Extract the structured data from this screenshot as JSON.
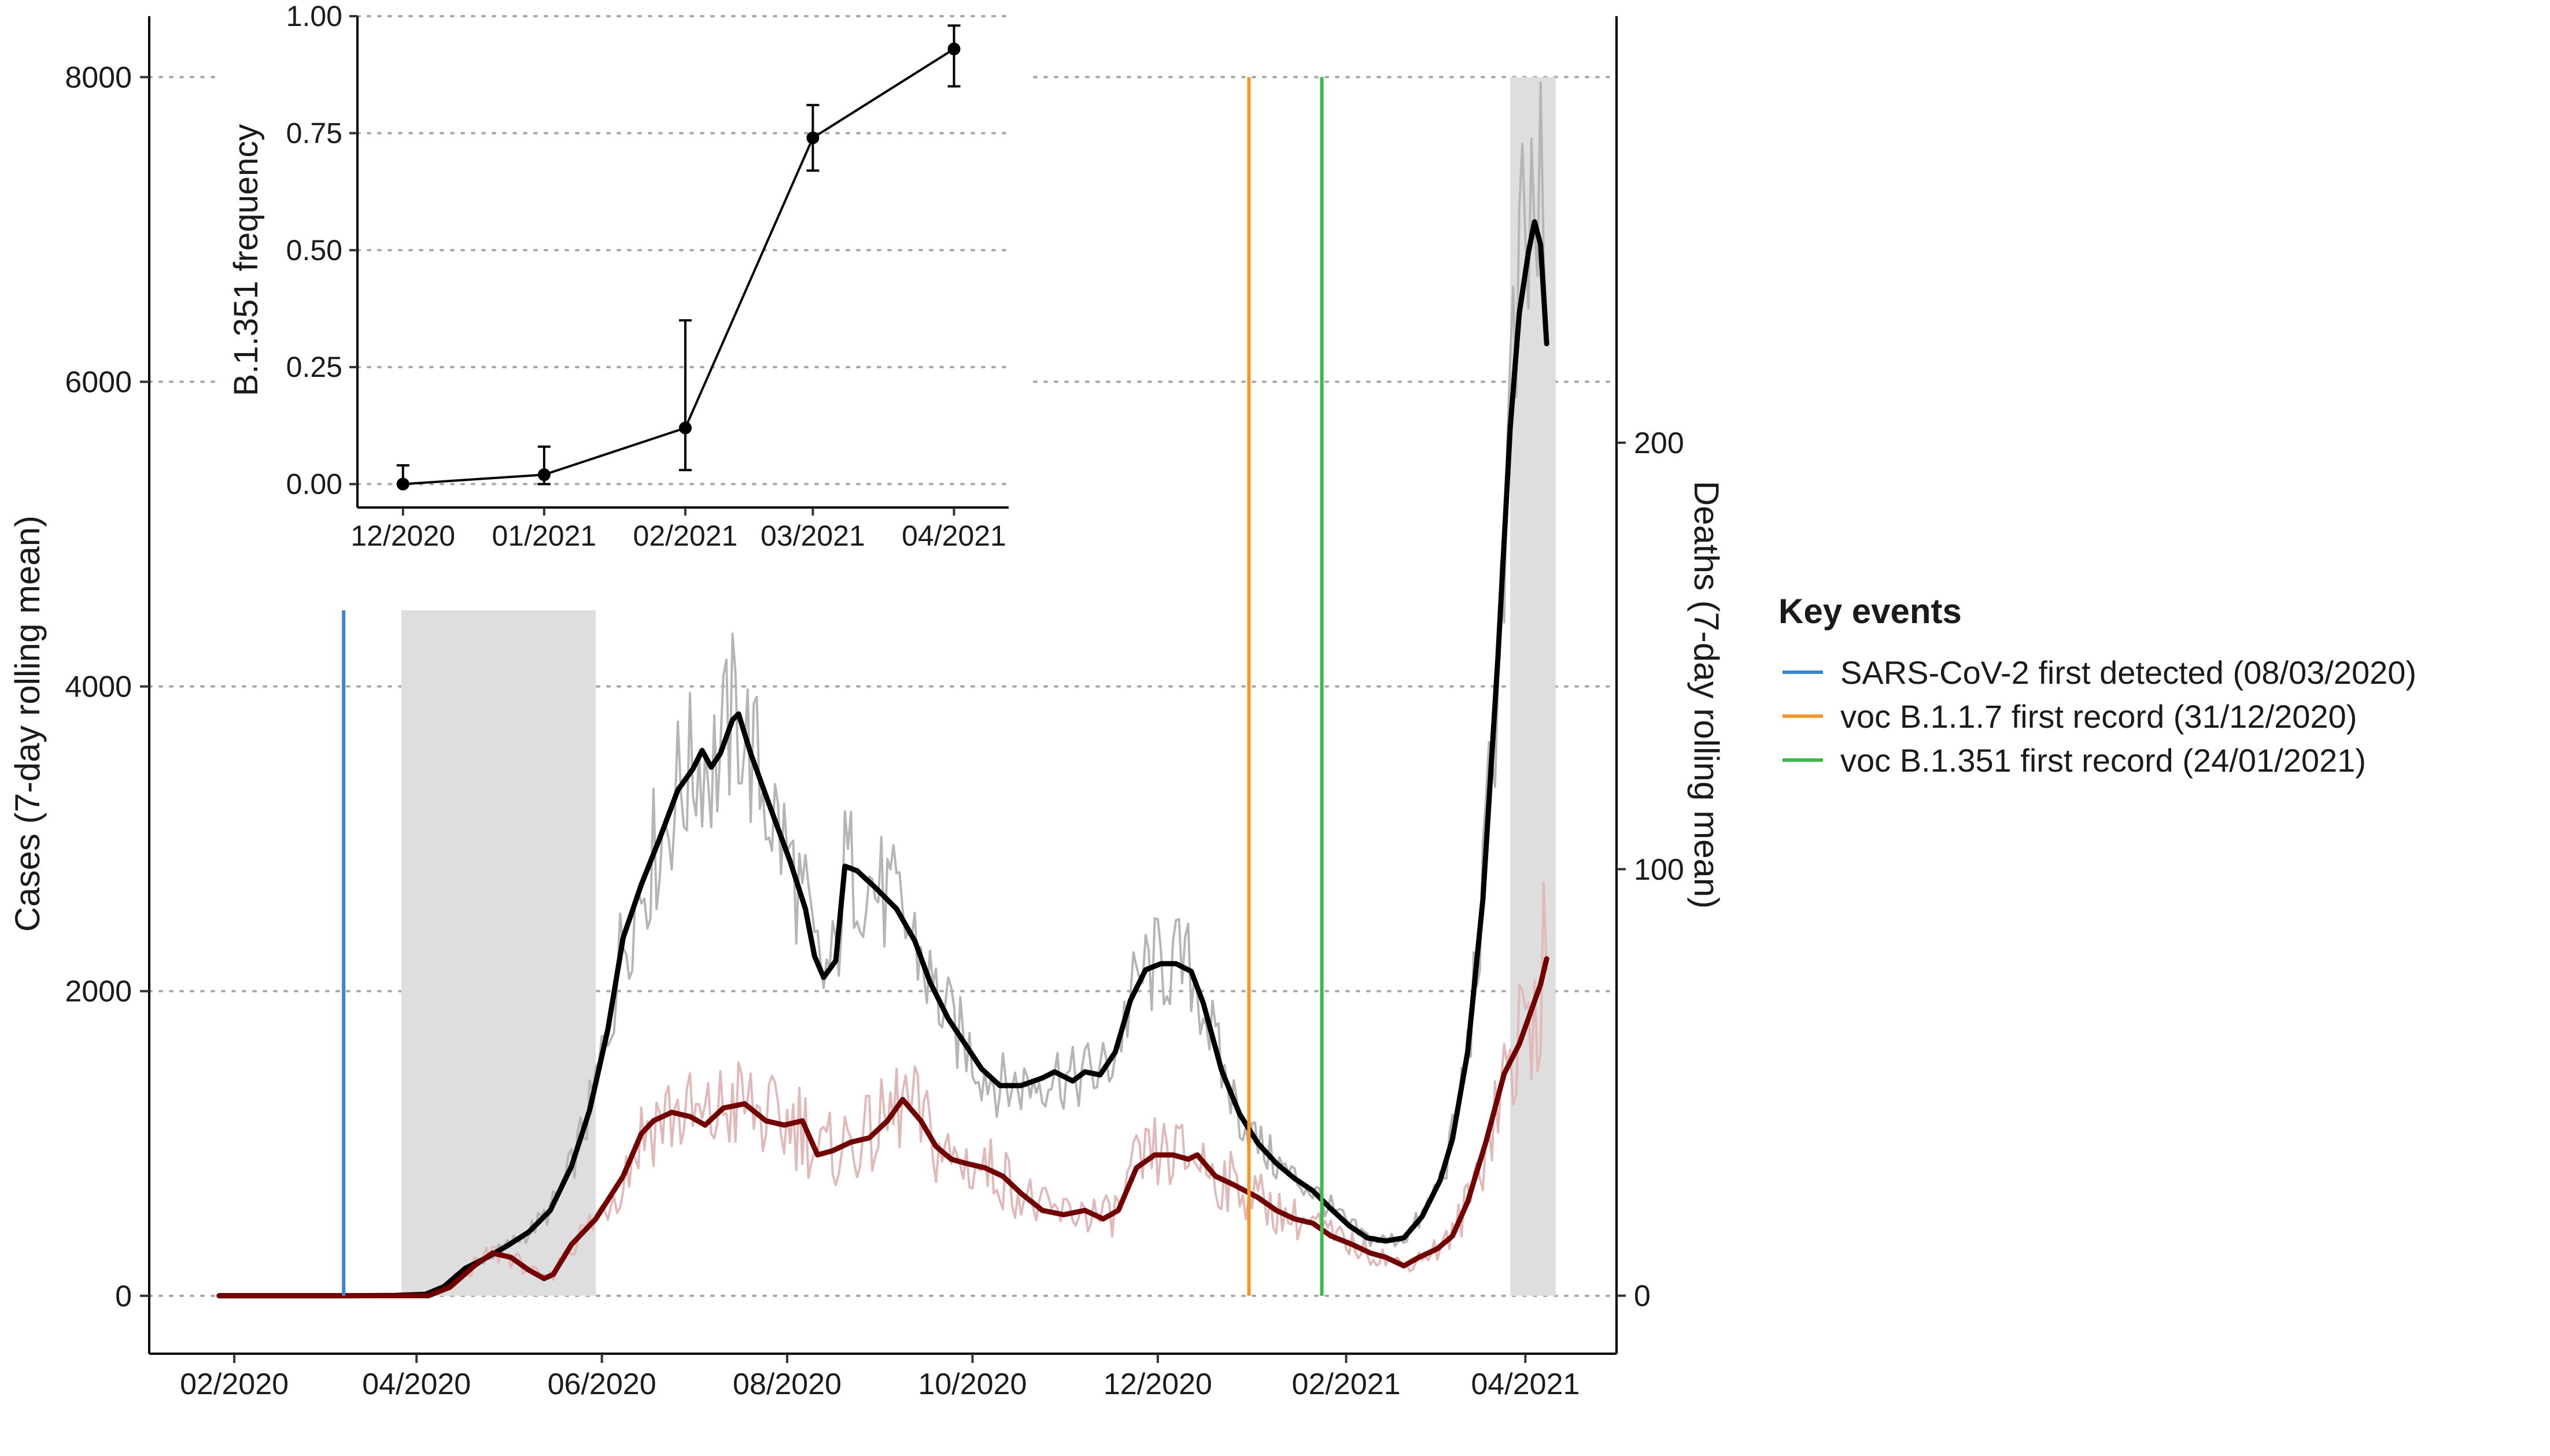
{
  "chart_data": [
    {
      "type": "line",
      "ylabel_left": "Cases (7-day rolling mean)",
      "ylabel_right": "Deaths (7-day rolling mean)",
      "x_ticks": [
        "02/2020",
        "04/2020",
        "06/2020",
        "08/2020",
        "10/2020",
        "12/2020",
        "02/2021",
        "04/2021"
      ],
      "x_tick_dates": [
        "2020-02-01",
        "2020-04-01",
        "2020-06-01",
        "2020-08-01",
        "2020-10-01",
        "2020-12-01",
        "2021-02-01",
        "2021-04-01"
      ],
      "y_left_ticks": [
        "0",
        "2000",
        "4000",
        "6000",
        "8000"
      ],
      "y_left_values": [
        0,
        2000,
        4000,
        6000,
        8000
      ],
      "y_right_ticks": [
        "0",
        "100",
        "200"
      ],
      "y_right_values": [
        0,
        100,
        200
      ],
      "ylim_left": [
        -380,
        8400
      ],
      "ylim_right": [
        -13.6,
        300
      ],
      "xlim": [
        "2020-01-04",
        "2021-05-01"
      ],
      "grid": "horizontal dotted at left-axis ticks",
      "shaded_periods": [
        {
          "start": "2020-03-27",
          "end": "2020-05-30",
          "ymax_cases": 4500
        },
        {
          "start": "2021-03-27",
          "end": "2021-04-11",
          "ymax_cases": 8000
        }
      ],
      "series": [
        {
          "name": "Cases",
          "axis": "left",
          "color": "#000000",
          "daily_color": "#b5b5b5",
          "points": [
            [
              "2020-01-27",
              0
            ],
            [
              "2020-02-15",
              0
            ],
            [
              "2020-03-08",
              0
            ],
            [
              "2020-03-25",
              3
            ],
            [
              "2020-04-04",
              10
            ],
            [
              "2020-04-10",
              60
            ],
            [
              "2020-04-17",
              180
            ],
            [
              "2020-04-24",
              250
            ],
            [
              "2020-05-01",
              330
            ],
            [
              "2020-05-08",
              420
            ],
            [
              "2020-05-15",
              560
            ],
            [
              "2020-05-22",
              850
            ],
            [
              "2020-05-28",
              1220
            ],
            [
              "2020-06-03",
              1750
            ],
            [
              "2020-06-08",
              2350
            ],
            [
              "2020-06-14",
              2700
            ],
            [
              "2020-06-20",
              3000
            ],
            [
              "2020-06-26",
              3320
            ],
            [
              "2020-07-01",
              3460
            ],
            [
              "2020-07-04",
              3580
            ],
            [
              "2020-07-07",
              3470
            ],
            [
              "2020-07-10",
              3560
            ],
            [
              "2020-07-14",
              3780
            ],
            [
              "2020-07-16",
              3820
            ],
            [
              "2020-07-20",
              3560
            ],
            [
              "2020-07-26",
              3230
            ],
            [
              "2020-08-02",
              2850
            ],
            [
              "2020-08-07",
              2540
            ],
            [
              "2020-08-10",
              2230
            ],
            [
              "2020-08-13",
              2090
            ],
            [
              "2020-08-17",
              2200
            ],
            [
              "2020-08-20",
              2820
            ],
            [
              "2020-08-24",
              2790
            ],
            [
              "2020-08-30",
              2680
            ],
            [
              "2020-09-06",
              2540
            ],
            [
              "2020-09-12",
              2330
            ],
            [
              "2020-09-17",
              2060
            ],
            [
              "2020-09-23",
              1820
            ],
            [
              "2020-09-29",
              1640
            ],
            [
              "2020-10-04",
              1490
            ],
            [
              "2020-10-10",
              1380
            ],
            [
              "2020-10-17",
              1380
            ],
            [
              "2020-10-24",
              1430
            ],
            [
              "2020-10-28",
              1470
            ],
            [
              "2020-11-03",
              1410
            ],
            [
              "2020-11-07",
              1470
            ],
            [
              "2020-11-12",
              1450
            ],
            [
              "2020-11-17",
              1600
            ],
            [
              "2020-11-22",
              1940
            ],
            [
              "2020-11-27",
              2140
            ],
            [
              "2020-12-02",
              2180
            ],
            [
              "2020-12-07",
              2180
            ],
            [
              "2020-12-12",
              2130
            ],
            [
              "2020-12-16",
              1920
            ],
            [
              "2020-12-22",
              1480
            ],
            [
              "2020-12-28",
              1190
            ],
            [
              "2021-01-03",
              1000
            ],
            [
              "2021-01-09",
              870
            ],
            [
              "2021-01-15",
              770
            ],
            [
              "2021-01-21",
              690
            ],
            [
              "2021-01-27",
              570
            ],
            [
              "2021-02-02",
              460
            ],
            [
              "2021-02-08",
              380
            ],
            [
              "2021-02-14",
              360
            ],
            [
              "2021-02-20",
              380
            ],
            [
              "2021-02-26",
              520
            ],
            [
              "2021-03-04",
              760
            ],
            [
              "2021-03-08",
              1030
            ],
            [
              "2021-03-13",
              1600
            ],
            [
              "2021-03-18",
              2600
            ],
            [
              "2021-03-23",
              4200
            ],
            [
              "2021-03-27",
              5700
            ],
            [
              "2021-03-30",
              6450
            ],
            [
              "2021-04-02",
              6850
            ],
            [
              "2021-04-04",
              7050
            ],
            [
              "2021-04-06",
              6900
            ],
            [
              "2021-04-08",
              6250
            ]
          ]
        },
        {
          "name": "Deaths",
          "axis": "right",
          "color": "#730000",
          "daily_color": "#e2b9b9",
          "points": [
            [
              "2020-01-27",
              0
            ],
            [
              "2020-02-15",
              0
            ],
            [
              "2020-03-08",
              0
            ],
            [
              "2020-03-27",
              0
            ],
            [
              "2020-04-05",
              0
            ],
            [
              "2020-04-12",
              2
            ],
            [
              "2020-04-20",
              7
            ],
            [
              "2020-04-26",
              10
            ],
            [
              "2020-05-02",
              9
            ],
            [
              "2020-05-08",
              6
            ],
            [
              "2020-05-13",
              4
            ],
            [
              "2020-05-16",
              5
            ],
            [
              "2020-05-22",
              12
            ],
            [
              "2020-05-30",
              18
            ],
            [
              "2020-06-08",
              28
            ],
            [
              "2020-06-14",
              38
            ],
            [
              "2020-06-18",
              41
            ],
            [
              "2020-06-24",
              43
            ],
            [
              "2020-06-30",
              42
            ],
            [
              "2020-07-05",
              40
            ],
            [
              "2020-07-11",
              44
            ],
            [
              "2020-07-18",
              45
            ],
            [
              "2020-07-25",
              41
            ],
            [
              "2020-07-31",
              40
            ],
            [
              "2020-08-06",
              41
            ],
            [
              "2020-08-11",
              33
            ],
            [
              "2020-08-16",
              34
            ],
            [
              "2020-08-22",
              36
            ],
            [
              "2020-08-28",
              37
            ],
            [
              "2020-09-03",
              41
            ],
            [
              "2020-09-08",
              46
            ],
            [
              "2020-09-14",
              41
            ],
            [
              "2020-09-19",
              35
            ],
            [
              "2020-09-24",
              32
            ],
            [
              "2020-09-29",
              31
            ],
            [
              "2020-10-05",
              30
            ],
            [
              "2020-10-11",
              28
            ],
            [
              "2020-10-17",
              24
            ],
            [
              "2020-10-24",
              20
            ],
            [
              "2020-10-31",
              19
            ],
            [
              "2020-11-07",
              20
            ],
            [
              "2020-11-13",
              18
            ],
            [
              "2020-11-18",
              20
            ],
            [
              "2020-11-24",
              30
            ],
            [
              "2020-11-30",
              33
            ],
            [
              "2020-12-06",
              33
            ],
            [
              "2020-12-11",
              32
            ],
            [
              "2020-12-14",
              33
            ],
            [
              "2020-12-20",
              28
            ],
            [
              "2020-12-26",
              26
            ],
            [
              "2021-01-03",
              23
            ],
            [
              "2021-01-09",
              20
            ],
            [
              "2021-01-15",
              18
            ],
            [
              "2021-01-21",
              17
            ],
            [
              "2021-01-27",
              14
            ],
            [
              "2021-02-03",
              12
            ],
            [
              "2021-02-09",
              10
            ],
            [
              "2021-02-14",
              9
            ],
            [
              "2021-02-20",
              7
            ],
            [
              "2021-02-25",
              9
            ],
            [
              "2021-03-03",
              11
            ],
            [
              "2021-03-08",
              14
            ],
            [
              "2021-03-13",
              22
            ],
            [
              "2021-03-19",
              36
            ],
            [
              "2021-03-25",
              52
            ],
            [
              "2021-03-30",
              59
            ],
            [
              "2021-04-03",
              67
            ],
            [
              "2021-04-06",
              73
            ],
            [
              "2021-04-08",
              79
            ]
          ]
        }
      ],
      "event_lines": [
        {
          "date": "2020-03-08",
          "ymax_cases": 4500,
          "color": "#3a86c8"
        },
        {
          "date": "2020-12-31",
          "ymax_cases": 8000,
          "color": "#f0962b"
        },
        {
          "date": "2021-01-24",
          "ymax_cases": 8000,
          "color": "#3db84a"
        }
      ],
      "legend": {
        "title": "Key events",
        "placement": "right",
        "entries": [
          {
            "label": "SARS-CoV-2 first detected (08/03/2020)",
            "color": "#3a86c8"
          },
          {
            "label": "voc B.1.1.7 first record (31/12/2020)",
            "color": "#f0962b"
          },
          {
            "label": "voc B.1.351 first record (24/01/2021)",
            "color": "#3db84a"
          }
        ]
      }
    },
    {
      "type": "line",
      "placement": "inset top-left",
      "ylabel": "B.1.351 frequency",
      "x_ticks": [
        "12/2020",
        "01/2021",
        "02/2021",
        "03/2021",
        "04/2021"
      ],
      "x_tick_dates": [
        "2020-12-01",
        "2021-01-01",
        "2021-02-01",
        "2021-03-01",
        "2021-04-01"
      ],
      "y_ticks": [
        "0.00",
        "0.25",
        "0.50",
        "0.75",
        "1.00"
      ],
      "y_values": [
        0,
        0.25,
        0.5,
        0.75,
        1
      ],
      "ylim": [
        -0.05,
        1.0
      ],
      "xlim": [
        "2020-11-21",
        "2021-04-13"
      ],
      "grid": "horizontal dotted",
      "points": [
        {
          "x": "2020-12-01",
          "y": 0.0,
          "ymin": 0.0,
          "ymax": 0.04
        },
        {
          "x": "2021-01-01",
          "y": 0.02,
          "ymin": 0.0,
          "ymax": 0.08
        },
        {
          "x": "2021-02-01",
          "y": 0.12,
          "ymin": 0.03,
          "ymax": 0.35
        },
        {
          "x": "2021-03-01",
          "y": 0.74,
          "ymin": 0.67,
          "ymax": 0.81
        },
        {
          "x": "2021-04-01",
          "y": 0.93,
          "ymin": 0.85,
          "ymax": 0.98
        }
      ]
    }
  ]
}
